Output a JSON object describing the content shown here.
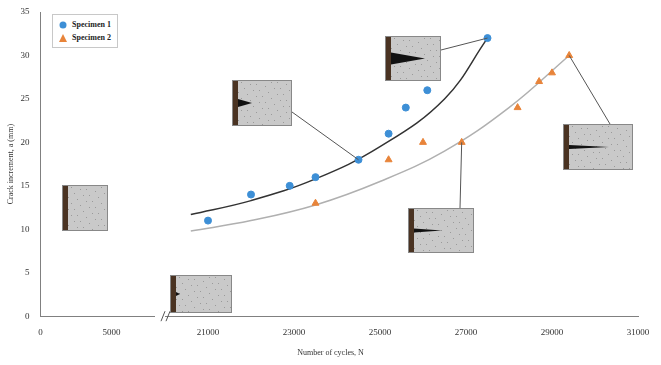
{
  "chart_data": [
    {
      "type": "scatter",
      "y_label": "Crack increment, a (mm)",
      "xlim": [
        0,
        8000
      ],
      "xticks": [
        0,
        5000
      ],
      "ylim": [
        0,
        35
      ],
      "yticks": [
        0,
        5,
        10,
        15,
        20,
        25,
        30,
        35
      ],
      "grid": false
    },
    {
      "type": "scatter",
      "x_label": "Number of cycles, N",
      "xlim": [
        20000,
        31000
      ],
      "xticks": [
        21000,
        23000,
        25000,
        27000,
        29000,
        31000
      ],
      "ylim": [
        0,
        35
      ],
      "tick_labels": "x",
      "grid": false,
      "legend": "top-left",
      "series": [
        {
          "name": "Specimen 1",
          "color": "#3d8fd6",
          "marker": "circle",
          "x": [
            21000,
            22000,
            22900,
            23500,
            24500,
            25200,
            25600,
            26100,
            27500
          ],
          "values": [
            11,
            14,
            15,
            16,
            18,
            21,
            24,
            26,
            32
          ],
          "fit": {
            "x": [
              20600,
              22000,
              23500,
              25000,
              26500,
              27500
            ],
            "values": [
              11.7,
              13.3,
              15.8,
              19.5,
              25,
              32
            ]
          }
        },
        {
          "name": "Specimen 2",
          "color": "#e8843a",
          "marker": "triangle",
          "x": [
            23500,
            25200,
            26000,
            26900,
            28200,
            28700,
            29000,
            29400
          ],
          "values": [
            13,
            18,
            20,
            20,
            24,
            27,
            28,
            30
          ],
          "fit": {
            "x": [
              20600,
              22000,
              23500,
              25000,
              26500,
              28000,
              29400
            ],
            "values": [
              9.8,
              11,
              12.8,
              15.5,
              19,
              24,
              30
            ]
          }
        }
      ]
    }
  ]
}
